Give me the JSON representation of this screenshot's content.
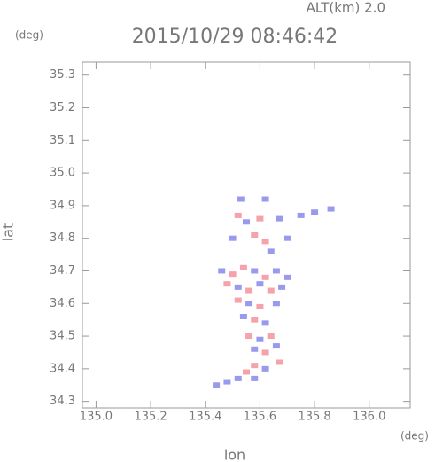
{
  "chart_data": {
    "type": "scatter",
    "title": "2015/10/29 08:46:42",
    "subtitle": "ALT(km) 2.0",
    "x_label": "lon",
    "y_label": "lat",
    "x_unit": "(deg)",
    "y_unit": "(deg)",
    "xlim": [
      134.95,
      136.15
    ],
    "ylim": [
      34.28,
      35.34
    ],
    "xticks": [
      {
        "value": 135.0,
        "label": "135.0"
      },
      135.2,
      135.4,
      135.6,
      135.8,
      {
        "value": 136.0,
        "label": "136.0"
      }
    ],
    "yticks": [
      34.3,
      34.4,
      34.5,
      34.6,
      34.7,
      34.8,
      34.9,
      {
        "value": 35.0,
        "label": "35.0"
      },
      35.1,
      35.2,
      35.3
    ],
    "x": [
      135.53,
      135.62,
      135.52,
      135.55,
      135.6,
      135.67,
      135.75,
      135.8,
      135.86,
      135.5,
      135.58,
      135.62,
      135.64,
      135.7,
      135.46,
      135.5,
      135.54,
      135.58,
      135.62,
      135.66,
      135.7,
      135.48,
      135.52,
      135.56,
      135.6,
      135.64,
      135.68,
      135.52,
      135.56,
      135.6,
      135.66,
      135.54,
      135.58,
      135.62,
      135.56,
      135.6,
      135.64,
      135.58,
      135.62,
      135.66,
      135.58,
      135.62,
      135.67,
      135.55,
      135.52,
      135.48,
      135.44,
      135.58
    ],
    "values": [
      34.92,
      34.92,
      34.87,
      34.85,
      34.86,
      34.86,
      34.87,
      34.88,
      34.89,
      34.8,
      34.81,
      34.79,
      34.76,
      34.8,
      34.7,
      34.69,
      34.71,
      34.7,
      34.68,
      34.7,
      34.68,
      34.66,
      34.65,
      34.64,
      34.66,
      34.64,
      34.65,
      34.61,
      34.6,
      34.59,
      34.6,
      34.56,
      34.55,
      34.54,
      34.5,
      34.49,
      34.5,
      34.46,
      34.45,
      34.47,
      34.41,
      34.4,
      34.42,
      34.39,
      34.37,
      34.36,
      34.35,
      34.37
    ],
    "point_colors": [
      "#8080e8",
      "#8080e8",
      "#f28b95",
      "#8080e8",
      "#f28b95",
      "#8080e8",
      "#8080e8",
      "#8080e8",
      "#8080e8",
      "#8080e8",
      "#f28b95",
      "#f28b95",
      "#8080e8",
      "#8080e8",
      "#8080e8",
      "#f28b95",
      "#f28b95",
      "#8080e8",
      "#f28b95",
      "#8080e8",
      "#8080e8",
      "#f28b95",
      "#8080e8",
      "#f28b95",
      "#8080e8",
      "#f28b95",
      "#8080e8",
      "#f28b95",
      "#8080e8",
      "#f28b95",
      "#8080e8",
      "#8080e8",
      "#f28b95",
      "#8080e8",
      "#f28b95",
      "#8080e8",
      "#f28b95",
      "#8080e8",
      "#f28b95",
      "#8080e8",
      "#f28b95",
      "#8080e8",
      "#f28b95",
      "#f28b95",
      "#8080e8",
      "#8080e8",
      "#8080e8",
      "#8080e8"
    ]
  }
}
